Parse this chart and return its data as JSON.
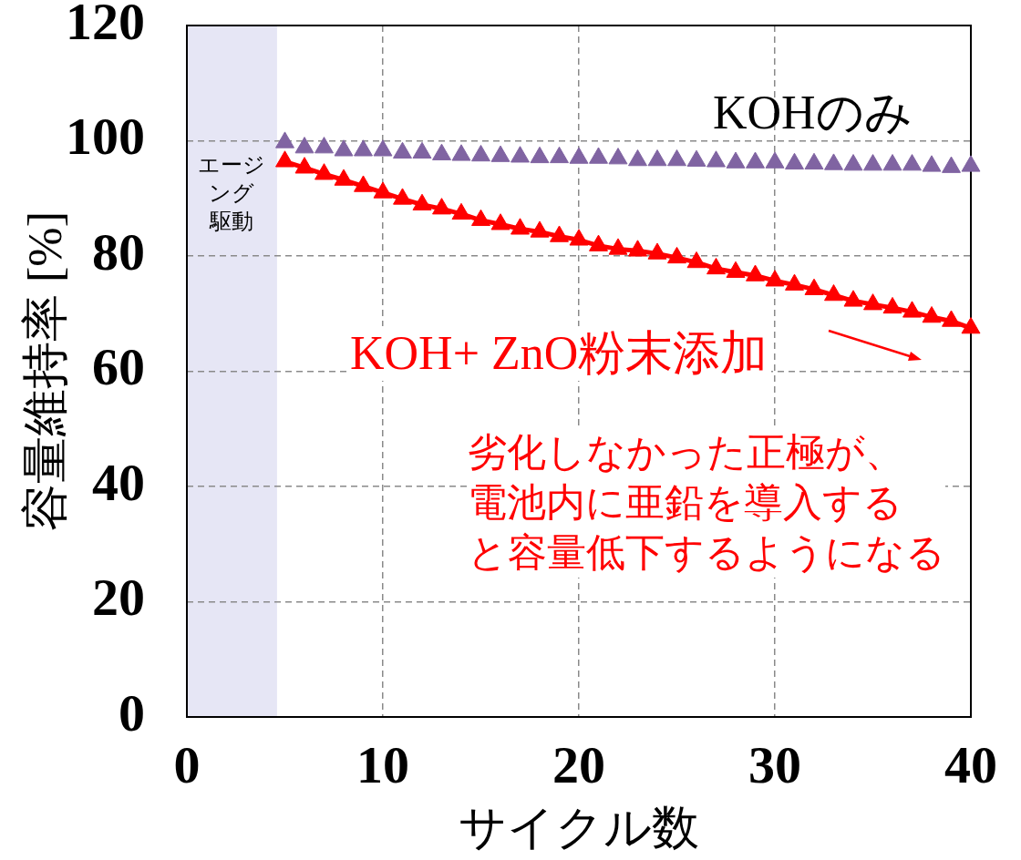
{
  "chart_data": {
    "type": "line",
    "xlabel": "サイクル数",
    "ylabel": "容量維持率 [%]",
    "x": [
      5,
      6,
      7,
      8,
      9,
      10,
      11,
      12,
      13,
      14,
      15,
      16,
      17,
      18,
      19,
      20,
      21,
      22,
      23,
      24,
      25,
      26,
      27,
      28,
      29,
      30,
      31,
      32,
      33,
      34,
      35,
      36,
      37,
      38,
      39,
      40
    ],
    "xlim": [
      0,
      40
    ],
    "xticks": [
      0,
      10,
      20,
      30,
      40
    ],
    "ylim": [
      0,
      120
    ],
    "yticks": [
      0,
      20,
      40,
      60,
      80,
      100,
      120
    ],
    "grid": true,
    "marker": "triangle",
    "line_style": "solid",
    "series": [
      {
        "name": "KOHのみ",
        "type": "scatter",
        "color": "#8064a2",
        "values": [
          99.7,
          98.8,
          98.8,
          98.3,
          98.3,
          98.3,
          97.9,
          97.9,
          97.6,
          97.5,
          97.4,
          97.3,
          97.2,
          97.1,
          97.1,
          97.0,
          97.0,
          96.9,
          96.6,
          96.6,
          96.6,
          96.5,
          96.4,
          96.2,
          96.2,
          96.2,
          96.0,
          96.0,
          95.9,
          95.8,
          95.8,
          95.8,
          95.8,
          95.6,
          95.4,
          95.6
        ]
      },
      {
        "name": "KOH+ ZnO粉末添加",
        "color": "#ff0000",
        "values": [
          96.4,
          95.3,
          94.2,
          93.2,
          92.1,
          91.0,
          89.9,
          88.9,
          88.2,
          87.3,
          86.2,
          85.5,
          84.7,
          84.2,
          83.4,
          82.8,
          81.8,
          81.2,
          80.9,
          80.4,
          79.7,
          78.9,
          77.8,
          77.2,
          76.6,
          75.7,
          75.0,
          74.2,
          73.2,
          72.2,
          71.6,
          71.0,
          70.3,
          69.4,
          68.7,
          67.5
        ]
      }
    ],
    "bands": [
      {
        "axis": "x",
        "from": 0,
        "to": 4.6,
        "label": "エージング駆動",
        "color": "#e6e6f5"
      }
    ],
    "annotations": [
      "劣化しなかった正極が、電池内に亜鉛を導入すると容量低下するようになる"
    ]
  }
}
